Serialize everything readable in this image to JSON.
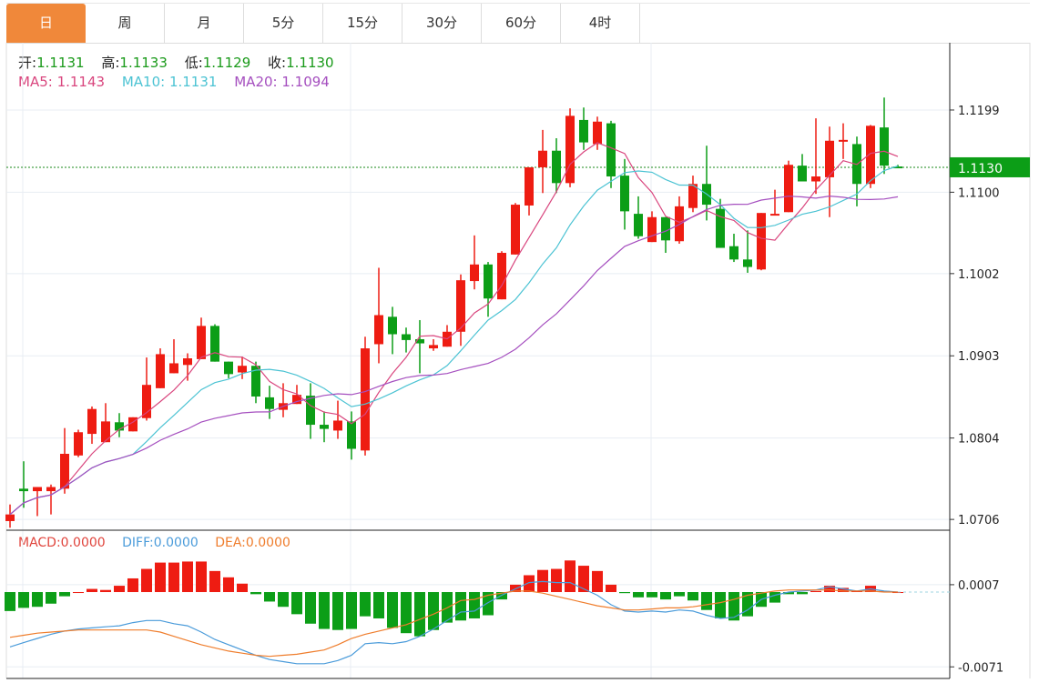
{
  "tabs": [
    {
      "label": "日",
      "active": true
    },
    {
      "label": "周"
    },
    {
      "label": "月"
    },
    {
      "label": "5分"
    },
    {
      "label": "15分"
    },
    {
      "label": "30分"
    },
    {
      "label": "60分"
    },
    {
      "label": "4时"
    }
  ],
  "ohlc_legend": {
    "open_label": "开:",
    "open": "1.1131",
    "high_label": "高:",
    "high": "1.1133",
    "low_label": "低:",
    "low": "1.1129",
    "close_label": "收:",
    "close": "1.1130"
  },
  "ma_legend": {
    "ma5": "MA5: 1.1143",
    "ma10": "MA10: 1.1131",
    "ma20": "MA20: 1.1094"
  },
  "macd_legend": {
    "macd": "MACD:0.0000",
    "diff": "DIFF:0.0000",
    "dea": "DEA:0.0000"
  },
  "colors": {
    "up": "#ee1c12",
    "down": "#0c9e17",
    "ma5": "#d9467e",
    "ma10": "#4cc3d3",
    "ma20": "#a54fbf",
    "diff": "#4a9bda",
    "dea": "#ef7d2c",
    "active_tab": "#f0883a",
    "price_tag": "#0c9e17"
  },
  "chart_data": [
    {
      "type": "candlestick",
      "ylim": [
        1.0693,
        1.128
      ],
      "grid": true,
      "y_ticks": [
        "1.1199",
        "1.1100",
        "1.1002",
        "1.0903",
        "1.0804",
        "1.0706"
      ],
      "current_price": "1.1130",
      "ma_periods": [
        5,
        10,
        20
      ],
      "ohlc": [
        [
          1.0704,
          1.0724,
          1.0696,
          1.0712
        ],
        [
          1.0743,
          1.0776,
          1.072,
          1.074
        ],
        [
          1.074,
          1.0745,
          1.071,
          1.0745
        ],
        [
          1.074,
          1.0748,
          1.0712,
          1.0745
        ],
        [
          1.0743,
          1.0816,
          1.0737,
          1.0785
        ],
        [
          1.0783,
          1.0814,
          1.0781,
          1.0811
        ],
        [
          1.0809,
          1.0842,
          1.0797,
          1.0839
        ],
        [
          1.0799,
          1.0846,
          1.0799,
          1.0824
        ],
        [
          1.0823,
          1.0834,
          1.0805,
          1.0813
        ],
        [
          1.0812,
          1.0829,
          1.0812,
          1.0829
        ],
        [
          1.0828,
          1.0901,
          1.0825,
          1.0868
        ],
        [
          1.0864,
          1.0912,
          1.0864,
          1.0905
        ],
        [
          1.0882,
          1.0923,
          1.0882,
          1.0894
        ],
        [
          1.0892,
          1.0906,
          1.0873,
          1.09
        ],
        [
          1.0899,
          1.0949,
          1.0899,
          1.0939
        ],
        [
          1.0939,
          1.0941,
          1.0896,
          1.0896
        ],
        [
          1.0896,
          1.0896,
          1.0876,
          1.0881
        ],
        [
          1.0883,
          1.0902,
          1.0875,
          1.0891
        ],
        [
          1.0891,
          1.0896,
          1.0846,
          1.0854
        ],
        [
          1.0853,
          1.0867,
          1.0827,
          1.0839
        ],
        [
          1.0838,
          1.087,
          1.0829,
          1.0846
        ],
        [
          1.0845,
          1.0868,
          1.0845,
          1.0856
        ],
        [
          1.0855,
          1.087,
          1.0803,
          1.082
        ],
        [
          1.082,
          1.0836,
          1.0799,
          1.0815
        ],
        [
          1.0813,
          1.0849,
          1.0803,
          1.0825
        ],
        [
          1.0824,
          1.0836,
          1.0778,
          1.0791
        ],
        [
          1.0789,
          1.0926,
          1.0783,
          1.0912
        ],
        [
          1.0917,
          1.1009,
          1.0894,
          1.0952
        ],
        [
          1.095,
          1.0962,
          1.0905,
          1.0929
        ],
        [
          1.0929,
          1.0937,
          1.0907,
          1.0922
        ],
        [
          1.0923,
          1.0946,
          1.0882,
          1.0918
        ],
        [
          1.0912,
          1.0923,
          1.0909,
          1.0916
        ],
        [
          1.0914,
          1.094,
          1.0914,
          1.0932
        ],
        [
          1.0932,
          1.1001,
          1.0915,
          1.0994
        ],
        [
          1.0993,
          1.1048,
          1.0983,
          1.1013
        ],
        [
          1.1013,
          1.1016,
          1.095,
          1.0972
        ],
        [
          1.0971,
          1.1029,
          1.0971,
          1.1027
        ],
        [
          1.1025,
          1.1087,
          1.1025,
          1.1085
        ],
        [
          1.1084,
          1.113,
          1.1072,
          1.113
        ],
        [
          1.113,
          1.1175,
          1.1099,
          1.115
        ],
        [
          1.115,
          1.1165,
          1.1099,
          1.1111
        ],
        [
          1.1111,
          1.1201,
          1.1106,
          1.1192
        ],
        [
          1.1187,
          1.1202,
          1.1151,
          1.116
        ],
        [
          1.1158,
          1.1191,
          1.1151,
          1.1185
        ],
        [
          1.1183,
          1.1186,
          1.1105,
          1.1119
        ],
        [
          1.112,
          1.114,
          1.1055,
          1.1077
        ],
        [
          1.1074,
          1.1095,
          1.1044,
          1.1047
        ],
        [
          1.104,
          1.1077,
          1.104,
          1.107
        ],
        [
          1.107,
          1.107,
          1.1027,
          1.1042
        ],
        [
          1.1041,
          1.1095,
          1.1038,
          1.1083
        ],
        [
          1.1081,
          1.112,
          1.1076,
          1.111
        ],
        [
          1.111,
          1.1156,
          1.1066,
          1.1085
        ],
        [
          1.108,
          1.1092,
          1.1033,
          1.1033
        ],
        [
          1.1035,
          1.105,
          1.1016,
          1.1019
        ],
        [
          1.1019,
          1.1054,
          1.1003,
          1.101
        ],
        [
          1.1007,
          1.1075,
          1.1006,
          1.1075
        ],
        [
          1.1072,
          1.1103,
          1.1072,
          1.1074
        ],
        [
          1.1076,
          1.1138,
          1.1076,
          1.1133
        ],
        [
          1.1132,
          1.1146,
          1.1113,
          1.1113
        ],
        [
          1.1113,
          1.1189,
          1.1098,
          1.1119
        ],
        [
          1.1118,
          1.1179,
          1.107,
          1.1162
        ],
        [
          1.1162,
          1.1183,
          1.114,
          1.1163
        ],
        [
          1.1158,
          1.1167,
          1.1083,
          1.111
        ],
        [
          1.111,
          1.1181,
          1.1105,
          1.118
        ],
        [
          1.1178,
          1.1214,
          1.1122,
          1.1132
        ],
        [
          1.1131,
          1.1133,
          1.1129,
          1.113
        ]
      ]
    },
    {
      "type": "macd",
      "ylim": [
        -0.0082,
        0.0057
      ],
      "y_ticks": [
        "0.0007",
        "-0.0071"
      ],
      "histogram": [
        -0.0018,
        -0.0015,
        -0.0014,
        -0.0011,
        -0.0004,
        0.0,
        0.0003,
        0.0002,
        0.0006,
        0.0013,
        0.0022,
        0.0028,
        0.0028,
        0.0029,
        0.0029,
        0.002,
        0.0014,
        0.0008,
        -0.0002,
        -0.0009,
        -0.0014,
        -0.0021,
        -0.003,
        -0.0035,
        -0.0036,
        -0.0035,
        -0.0023,
        -0.0025,
        -0.0034,
        -0.0039,
        -0.0042,
        -0.0036,
        -0.0029,
        -0.0027,
        -0.0025,
        -0.0022,
        -0.0007,
        0.0007,
        0.0016,
        0.0021,
        0.0022,
        0.003,
        0.0025,
        0.002,
        0.0007,
        -0.0001,
        -0.0005,
        -0.0005,
        -0.0007,
        -0.0004,
        -0.0008,
        -0.0017,
        -0.0025,
        -0.0027,
        -0.0023,
        -0.0014,
        -0.001,
        -0.0002,
        -0.0002,
        0.0001,
        0.0006,
        0.0004,
        0.0001,
        0.0006,
        0.0001,
        0.0
      ],
      "diff": [
        -0.0052,
        -0.0048,
        -0.0044,
        -0.004,
        -0.0037,
        -0.0035,
        -0.0034,
        -0.0033,
        -0.0032,
        -0.0029,
        -0.0027,
        -0.0027,
        -0.003,
        -0.0032,
        -0.0038,
        -0.0045,
        -0.005,
        -0.0055,
        -0.006,
        -0.0064,
        -0.0066,
        -0.0068,
        -0.0068,
        -0.0068,
        -0.0065,
        -0.006,
        -0.0049,
        -0.0048,
        -0.0049,
        -0.0047,
        -0.0042,
        -0.0035,
        -0.0027,
        -0.0019,
        -0.0018,
        -0.001,
        -0.0003,
        0.0003,
        0.0009,
        0.001,
        0.0009,
        0.0009,
        0.0003,
        -0.0003,
        -0.0012,
        -0.0018,
        -0.0019,
        -0.0018,
        -0.0019,
        -0.0017,
        -0.0018,
        -0.0022,
        -0.0025,
        -0.0024,
        -0.0017,
        -0.0007,
        -0.0003,
        0.0,
        0.0001,
        0.0002,
        0.0005,
        0.0003,
        0.0001,
        0.0003,
        0.0001,
        0.0
      ],
      "dea": [
        -0.0043,
        -0.0041,
        -0.0039,
        -0.0038,
        -0.0037,
        -0.0036,
        -0.0036,
        -0.0036,
        -0.0036,
        -0.0036,
        -0.0036,
        -0.0038,
        -0.0042,
        -0.0046,
        -0.005,
        -0.0053,
        -0.0056,
        -0.0058,
        -0.006,
        -0.0061,
        -0.006,
        -0.0059,
        -0.0057,
        -0.0055,
        -0.005,
        -0.0044,
        -0.004,
        -0.0037,
        -0.0034,
        -0.0031,
        -0.0026,
        -0.0021,
        -0.0015,
        -0.0008,
        -0.0007,
        -0.0003,
        -0.0001,
        0.0001,
        0.0001,
        -0.0001,
        -0.0004,
        -0.0007,
        -0.001,
        -0.0013,
        -0.0015,
        -0.0017,
        -0.0017,
        -0.0016,
        -0.0015,
        -0.0015,
        -0.0014,
        -0.0012,
        -0.001,
        -0.0007,
        -0.0003,
        -0.0001,
        0.0001,
        0.0002,
        0.0002,
        0.0002,
        0.0002,
        0.0001,
        0.0001,
        0.0001,
        0.0,
        0.0
      ]
    }
  ]
}
